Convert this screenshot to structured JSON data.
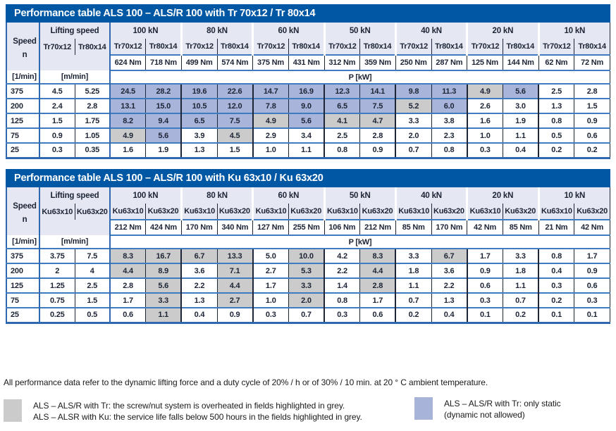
{
  "colors": {
    "title_bar": "#0058A5",
    "header_bg": "#E5E7F2",
    "blue_cell": "#A9B4DB",
    "grey_cell": "#CBCBCB",
    "row_line_blue": "#3F7CBF",
    "column_line_dark": "#1D2538"
  },
  "tables": [
    {
      "title": "Performance table ALS 100 – ALS/R 100 with Tr 70x12 / Tr 80x14",
      "speed_label": "Speed",
      "speed_symbol": "n",
      "lifting_label": "Lifting speed",
      "screw_a": "Tr70x12",
      "screw_b": "Tr80x14",
      "speed_unit": "[1/min]",
      "lifting_unit": "[m/min]",
      "power_label": "P [kW]",
      "groups": [
        {
          "load": "100 kN",
          "torque_a": "624 Nm",
          "torque_b": "718 Nm"
        },
        {
          "load": "80 kN",
          "torque_a": "499 Nm",
          "torque_b": "574 Nm"
        },
        {
          "load": "60 kN",
          "torque_a": "375 Nm",
          "torque_b": "431 Nm"
        },
        {
          "load": "50 kN",
          "torque_a": "312 Nm",
          "torque_b": "359 Nm"
        },
        {
          "load": "40 kN",
          "torque_a": "250 Nm",
          "torque_b": "287 Nm"
        },
        {
          "load": "20 kN",
          "torque_a": "125 Nm",
          "torque_b": "144 Nm"
        },
        {
          "load": "10 kN",
          "torque_a": "62 Nm",
          "torque_b": "72 Nm"
        }
      ],
      "rows": [
        {
          "speed": "375",
          "lift_a": "4.5",
          "lift_b": "5.25",
          "cells": [
            [
              "24.5",
              "b"
            ],
            [
              "28.2",
              "b"
            ],
            [
              "19.6",
              "b"
            ],
            [
              "22.6",
              "b"
            ],
            [
              "14.7",
              "b"
            ],
            [
              "16.9",
              "b"
            ],
            [
              "12.3",
              "b"
            ],
            [
              "14.1",
              "b"
            ],
            [
              "9.8",
              "b"
            ],
            [
              "11.3",
              "b"
            ],
            [
              "4.9",
              "g"
            ],
            [
              "5.6",
              "b"
            ],
            [
              "2.5",
              "w"
            ],
            [
              "2.8",
              "w"
            ]
          ]
        },
        {
          "speed": "200",
          "lift_a": "2.4",
          "lift_b": "2.8",
          "cells": [
            [
              "13.1",
              "b"
            ],
            [
              "15.0",
              "b"
            ],
            [
              "10.5",
              "b"
            ],
            [
              "12.0",
              "b"
            ],
            [
              "7.8",
              "b"
            ],
            [
              "9.0",
              "b"
            ],
            [
              "6.5",
              "b"
            ],
            [
              "7.5",
              "b"
            ],
            [
              "5.2",
              "g"
            ],
            [
              "6.0",
              "b"
            ],
            [
              "2.6",
              "w"
            ],
            [
              "3.0",
              "w"
            ],
            [
              "1.3",
              "w"
            ],
            [
              "1.5",
              "w"
            ]
          ]
        },
        {
          "speed": "125",
          "lift_a": "1.5",
          "lift_b": "1.75",
          "cells": [
            [
              "8.2",
              "b"
            ],
            [
              "9.4",
              "b"
            ],
            [
              "6.5",
              "b"
            ],
            [
              "7.5",
              "b"
            ],
            [
              "4.9",
              "g"
            ],
            [
              "5.6",
              "b"
            ],
            [
              "4.1",
              "g"
            ],
            [
              "4.7",
              "g"
            ],
            [
              "3.3",
              "w"
            ],
            [
              "3.8",
              "w"
            ],
            [
              "1.6",
              "w"
            ],
            [
              "1.9",
              "w"
            ],
            [
              "0.8",
              "w"
            ],
            [
              "0.9",
              "w"
            ]
          ]
        },
        {
          "speed": "75",
          "lift_a": "0.9",
          "lift_b": "1.05",
          "cells": [
            [
              "4.9",
              "g"
            ],
            [
              "5.6",
              "b"
            ],
            [
              "3.9",
              "w"
            ],
            [
              "4.5",
              "g"
            ],
            [
              "2.9",
              "w"
            ],
            [
              "3.4",
              "w"
            ],
            [
              "2.5",
              "w"
            ],
            [
              "2.8",
              "w"
            ],
            [
              "2.0",
              "w"
            ],
            [
              "2.3",
              "w"
            ],
            [
              "1.0",
              "w"
            ],
            [
              "1.1",
              "w"
            ],
            [
              "0.5",
              "w"
            ],
            [
              "0.6",
              "w"
            ]
          ]
        },
        {
          "speed": "25",
          "lift_a": "0.3",
          "lift_b": "0.35",
          "cells": [
            [
              "1.6",
              "w"
            ],
            [
              "1.9",
              "w"
            ],
            [
              "1.3",
              "w"
            ],
            [
              "1.5",
              "w"
            ],
            [
              "1.0",
              "w"
            ],
            [
              "1.1",
              "w"
            ],
            [
              "0.8",
              "w"
            ],
            [
              "0.9",
              "w"
            ],
            [
              "0.7",
              "w"
            ],
            [
              "0.8",
              "w"
            ],
            [
              "0.3",
              "w"
            ],
            [
              "0.4",
              "w"
            ],
            [
              "0.2",
              "w"
            ],
            [
              "0.2",
              "w"
            ]
          ]
        }
      ]
    },
    {
      "title": "Performance table ALS 100 – ALS/R 100 with Ku 63x10 / Ku 63x20",
      "speed_label": "Speed",
      "speed_symbol": "n",
      "lifting_label": "Lifting speed",
      "screw_a": "Ku63x10",
      "screw_b": "Ku63x20",
      "speed_unit": "[1/min]",
      "lifting_unit": "[m/min]",
      "power_label": "P [kW]",
      "groups": [
        {
          "load": "100 kN",
          "torque_a": "212 Nm",
          "torque_b": "424 Nm"
        },
        {
          "load": "80 kN",
          "torque_a": "170 Nm",
          "torque_b": "340 Nm"
        },
        {
          "load": "60 kN",
          "torque_a": "127 Nm",
          "torque_b": "255 Nm"
        },
        {
          "load": "50 kN",
          "torque_a": "106 Nm",
          "torque_b": "212 Nm"
        },
        {
          "load": "40 kN",
          "torque_a": "85 Nm",
          "torque_b": "170 Nm"
        },
        {
          "load": "20 kN",
          "torque_a": "42 Nm",
          "torque_b": "85 Nm"
        },
        {
          "load": "10 kN",
          "torque_a": "21 Nm",
          "torque_b": "42 Nm"
        }
      ],
      "rows": [
        {
          "speed": "375",
          "lift_a": "3.75",
          "lift_b": "7.5",
          "cells": [
            [
              "8.3",
              "g"
            ],
            [
              "16.7",
              "g"
            ],
            [
              "6.7",
              "g"
            ],
            [
              "13.3",
              "g"
            ],
            [
              "5.0",
              "w"
            ],
            [
              "10.0",
              "g"
            ],
            [
              "4.2",
              "w"
            ],
            [
              "8.3",
              "g"
            ],
            [
              "3.3",
              "w"
            ],
            [
              "6.7",
              "g"
            ],
            [
              "1.7",
              "w"
            ],
            [
              "3.3",
              "w"
            ],
            [
              "0.8",
              "w"
            ],
            [
              "1.7",
              "w"
            ]
          ]
        },
        {
          "speed": "200",
          "lift_a": "2",
          "lift_b": "4",
          "cells": [
            [
              "4.4",
              "g"
            ],
            [
              "8.9",
              "g"
            ],
            [
              "3.6",
              "w"
            ],
            [
              "7.1",
              "g"
            ],
            [
              "2.7",
              "w"
            ],
            [
              "5.3",
              "g"
            ],
            [
              "2.2",
              "w"
            ],
            [
              "4.4",
              "g"
            ],
            [
              "1.8",
              "w"
            ],
            [
              "3.6",
              "w"
            ],
            [
              "0.9",
              "w"
            ],
            [
              "1.8",
              "w"
            ],
            [
              "0.4",
              "w"
            ],
            [
              "0.9",
              "w"
            ]
          ]
        },
        {
          "speed": "125",
          "lift_a": "1.25",
          "lift_b": "2.5",
          "cells": [
            [
              "2.8",
              "w"
            ],
            [
              "5.6",
              "g"
            ],
            [
              "2.2",
              "w"
            ],
            [
              "4.4",
              "g"
            ],
            [
              "1.7",
              "w"
            ],
            [
              "3.3",
              "g"
            ],
            [
              "1.4",
              "w"
            ],
            [
              "2.8",
              "g"
            ],
            [
              "1.1",
              "w"
            ],
            [
              "2.2",
              "w"
            ],
            [
              "0.6",
              "w"
            ],
            [
              "1.1",
              "w"
            ],
            [
              "0.3",
              "w"
            ],
            [
              "0.6",
              "w"
            ]
          ]
        },
        {
          "speed": "75",
          "lift_a": "0.75",
          "lift_b": "1.5",
          "cells": [
            [
              "1.7",
              "w"
            ],
            [
              "3.3",
              "g"
            ],
            [
              "1.3",
              "w"
            ],
            [
              "2.7",
              "g"
            ],
            [
              "1.0",
              "w"
            ],
            [
              "2.0",
              "g"
            ],
            [
              "0.8",
              "w"
            ],
            [
              "1.7",
              "w"
            ],
            [
              "0.7",
              "w"
            ],
            [
              "1.3",
              "w"
            ],
            [
              "0.3",
              "w"
            ],
            [
              "0.7",
              "w"
            ],
            [
              "0.2",
              "w"
            ],
            [
              "0.3",
              "w"
            ]
          ]
        },
        {
          "speed": "25",
          "lift_a": "0.25",
          "lift_b": "0.5",
          "cells": [
            [
              "0.6",
              "w"
            ],
            [
              "1.1",
              "g"
            ],
            [
              "0.4",
              "w"
            ],
            [
              "0.9",
              "w"
            ],
            [
              "0.3",
              "w"
            ],
            [
              "0.7",
              "w"
            ],
            [
              "0.3",
              "w"
            ],
            [
              "0.6",
              "w"
            ],
            [
              "0.2",
              "w"
            ],
            [
              "0.4",
              "w"
            ],
            [
              "0.1",
              "w"
            ],
            [
              "0.2",
              "w"
            ],
            [
              "0.1",
              "w"
            ],
            [
              "0.1",
              "w"
            ]
          ]
        }
      ]
    }
  ],
  "footnote": "All performance data refer to the dynamic lifting force and a duty cycle of 20% / h or of 30% / 10 min. at 20 ° C ambient temperature.",
  "legend": {
    "grey": {
      "line1": "ALS – ALS/R with Tr: the screw/nut system is overheated in fields highlighted in grey.",
      "line2": "ALS – ALSR with Ku: the service life falls below 500 hours in the fields highlighted in grey."
    },
    "blue": {
      "line1": "ALS – ALS/R with Tr: only static",
      "line2": "(dynamic not allowed)"
    }
  }
}
